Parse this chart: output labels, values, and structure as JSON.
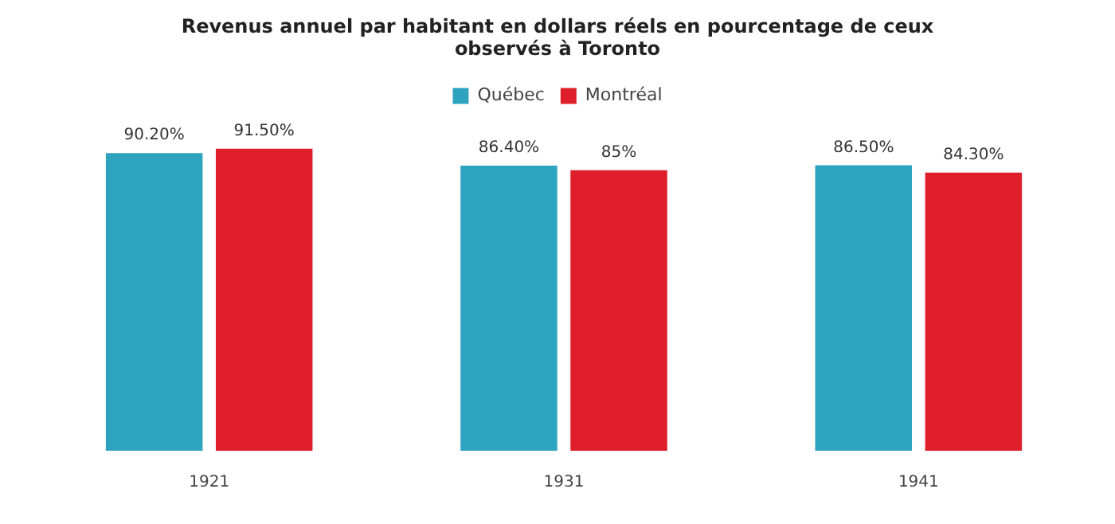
{
  "chart_data": {
    "type": "bar",
    "title": "Revenus annuel par habitant en dollars réels en pourcentage de ceux observés à Toronto",
    "categories": [
      "1921",
      "1931",
      "1941"
    ],
    "series": [
      {
        "name": "Québec",
        "color": "#2ea3bf",
        "values": [
          90.2,
          86.4,
          86.5
        ],
        "value_labels": [
          "90.20%",
          "86.40%",
          "86.50%"
        ]
      },
      {
        "name": "Montréal",
        "color": "#de1f2a",
        "values": [
          91.5,
          85,
          84.3
        ],
        "value_labels": [
          "91.50%",
          "85%",
          "84.30%"
        ]
      }
    ],
    "tick_labels": "x",
    "grid": false,
    "legend": "top"
  }
}
